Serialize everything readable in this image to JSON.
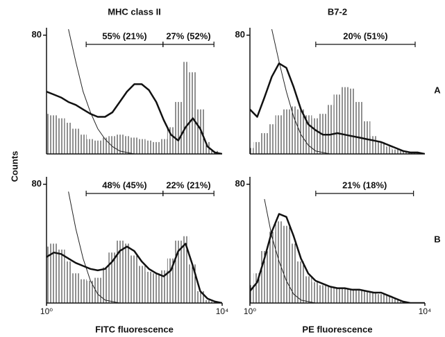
{
  "ylabel": "Counts",
  "chart_data": [
    {
      "type": "histogram",
      "title": "MHC class II",
      "xscale": "log",
      "xlim": [
        1,
        10000
      ],
      "ylim": [
        0,
        85
      ],
      "yticks": [
        80
      ],
      "x": [
        1,
        1.47,
        2.15,
        3.16,
        4.64,
        6.81,
        10,
        14.7,
        21.5,
        31.6,
        46.4,
        68.1,
        100,
        147,
        215,
        316,
        464,
        681,
        1000,
        1468,
        2154,
        3162,
        4642,
        6813,
        10000
      ],
      "gates": [
        {
          "label": "55% (21%)",
          "range": [
            8,
            450
          ]
        },
        {
          "label": "27% (52%)",
          "range": [
            450,
            6500
          ]
        }
      ],
      "series": [
        {
          "type": "bar",
          "color": "#222",
          "values": [
            27,
            26,
            24,
            21,
            17,
            13,
            10,
            9,
            11,
            12,
            13,
            12,
            11,
            10,
            9,
            8,
            10,
            18,
            35,
            62,
            55,
            30,
            8,
            2,
            0
          ]
        },
        {
          "type": "line",
          "width": 1,
          "color": "#222",
          "values": [
            null,
            null,
            null,
            84,
            62,
            42,
            28,
            17,
            10,
            5,
            2,
            1,
            0,
            0,
            0,
            0,
            0,
            0,
            0,
            0,
            0,
            0,
            0,
            0,
            0
          ]
        },
        {
          "type": "line",
          "width": 2.5,
          "color": "#111",
          "values": [
            42,
            40,
            38,
            35,
            33,
            30,
            27,
            25,
            25,
            28,
            35,
            42,
            47,
            47,
            43,
            35,
            23,
            13,
            9,
            18,
            24,
            17,
            5,
            1,
            0
          ]
        }
      ]
    },
    {
      "type": "histogram",
      "title": "B7-2",
      "row_label": "A",
      "xscale": "log",
      "xlim": [
        1,
        10000
      ],
      "ylim": [
        0,
        85
      ],
      "yticks": [
        80
      ],
      "x": [
        1,
        1.47,
        2.15,
        3.16,
        4.64,
        6.81,
        10,
        14.7,
        21.5,
        31.6,
        46.4,
        68.1,
        100,
        147,
        215,
        316,
        464,
        681,
        1000,
        1468,
        2154,
        3162,
        4642,
        6813,
        10000
      ],
      "gates": [
        {
          "label": "20% (51%)",
          "range": [
            32,
            6000
          ]
        }
      ],
      "series": [
        {
          "type": "bar",
          "color": "#222",
          "values": [
            4,
            8,
            14,
            20,
            26,
            30,
            32,
            30,
            26,
            24,
            27,
            33,
            40,
            45,
            44,
            35,
            22,
            12,
            8,
            5,
            3,
            2,
            1,
            1,
            0
          ]
        },
        {
          "type": "line",
          "width": 1,
          "color": "#222",
          "values": [
            null,
            null,
            null,
            84,
            62,
            42,
            25,
            13,
            6,
            2,
            1,
            0,
            0,
            0,
            0,
            0,
            0,
            0,
            0,
            0,
            0,
            0,
            0,
            0,
            0
          ]
        },
        {
          "type": "line",
          "width": 2.5,
          "color": "#111",
          "values": [
            30,
            25,
            38,
            52,
            61,
            58,
            45,
            30,
            20,
            16,
            13,
            13,
            14,
            13,
            12,
            11,
            10,
            9,
            8,
            6,
            4,
            2,
            1,
            1,
            0
          ]
        }
      ]
    },
    {
      "type": "histogram",
      "xlabel": "FITC fluorescence",
      "xscale": "log",
      "xlim": [
        1,
        10000
      ],
      "ylim": [
        0,
        85
      ],
      "yticks": [
        80
      ],
      "xticks": [
        {
          "value": 1,
          "label": "10⁰"
        },
        {
          "value": 10000,
          "label": "10⁴"
        }
      ],
      "x": [
        1,
        1.47,
        2.15,
        3.16,
        4.64,
        6.81,
        10,
        14.7,
        21.5,
        31.6,
        46.4,
        68.1,
        100,
        147,
        215,
        316,
        464,
        681,
        1000,
        1468,
        2154,
        3162,
        4642,
        6813,
        10000
      ],
      "gates": [
        {
          "label": "48% (45%)",
          "range": [
            8,
            450
          ]
        },
        {
          "label": "22% (21%)",
          "range": [
            450,
            6500
          ]
        }
      ],
      "series": [
        {
          "type": "bar",
          "color": "#222",
          "values": [
            38,
            40,
            36,
            28,
            20,
            16,
            15,
            17,
            24,
            34,
            42,
            40,
            32,
            25,
            21,
            20,
            22,
            30,
            42,
            45,
            26,
            8,
            2,
            1,
            0
          ]
        },
        {
          "type": "line",
          "width": 1,
          "color": "#222",
          "values": [
            null,
            null,
            null,
            75,
            50,
            30,
            15,
            6,
            2,
            1,
            0,
            0,
            0,
            0,
            0,
            0,
            0,
            0,
            0,
            0,
            0,
            0,
            0,
            0,
            0
          ]
        },
        {
          "type": "line",
          "width": 2.5,
          "color": "#111",
          "values": [
            31,
            34,
            33,
            30,
            27,
            25,
            23,
            22,
            23,
            28,
            35,
            38,
            35,
            28,
            23,
            20,
            18,
            22,
            35,
            40,
            25,
            8,
            3,
            1,
            0
          ]
        }
      ]
    },
    {
      "type": "histogram",
      "row_label": "B",
      "xlabel": "PE fluorescence",
      "xscale": "log",
      "xlim": [
        1,
        10000
      ],
      "ylim": [
        0,
        85
      ],
      "yticks": [
        80
      ],
      "xticks": [
        {
          "value": 1,
          "label": "10⁰"
        },
        {
          "value": 10000,
          "label": "10⁴"
        }
      ],
      "x": [
        1,
        1.47,
        2.15,
        3.16,
        4.64,
        6.81,
        10,
        14.7,
        21.5,
        31.6,
        46.4,
        68.1,
        100,
        147,
        215,
        316,
        464,
        681,
        1000,
        1468,
        2154,
        3162,
        4642,
        6813,
        10000
      ],
      "gates": [
        {
          "label": "21% (18%)",
          "range": [
            32,
            5500
          ]
        }
      ],
      "series": [
        {
          "type": "bar",
          "color": "#222",
          "values": [
            12,
            20,
            35,
            48,
            55,
            52,
            40,
            28,
            18,
            14,
            12,
            11,
            10,
            10,
            9,
            9,
            8,
            7,
            6,
            5,
            3,
            1,
            0,
            0,
            0
          ]
        },
        {
          "type": "line",
          "width": 1,
          "color": "#222",
          "values": [
            null,
            null,
            70,
            45,
            28,
            15,
            6,
            2,
            1,
            0,
            0,
            0,
            0,
            0,
            0,
            0,
            0,
            0,
            0,
            0,
            0,
            0,
            0,
            0,
            0
          ]
        },
        {
          "type": "line",
          "width": 2.5,
          "color": "#111",
          "values": [
            8,
            14,
            30,
            48,
            60,
            58,
            45,
            30,
            20,
            15,
            13,
            11,
            10,
            10,
            9,
            9,
            8,
            7,
            7,
            5,
            3,
            1,
            0,
            0,
            0
          ]
        }
      ]
    }
  ]
}
